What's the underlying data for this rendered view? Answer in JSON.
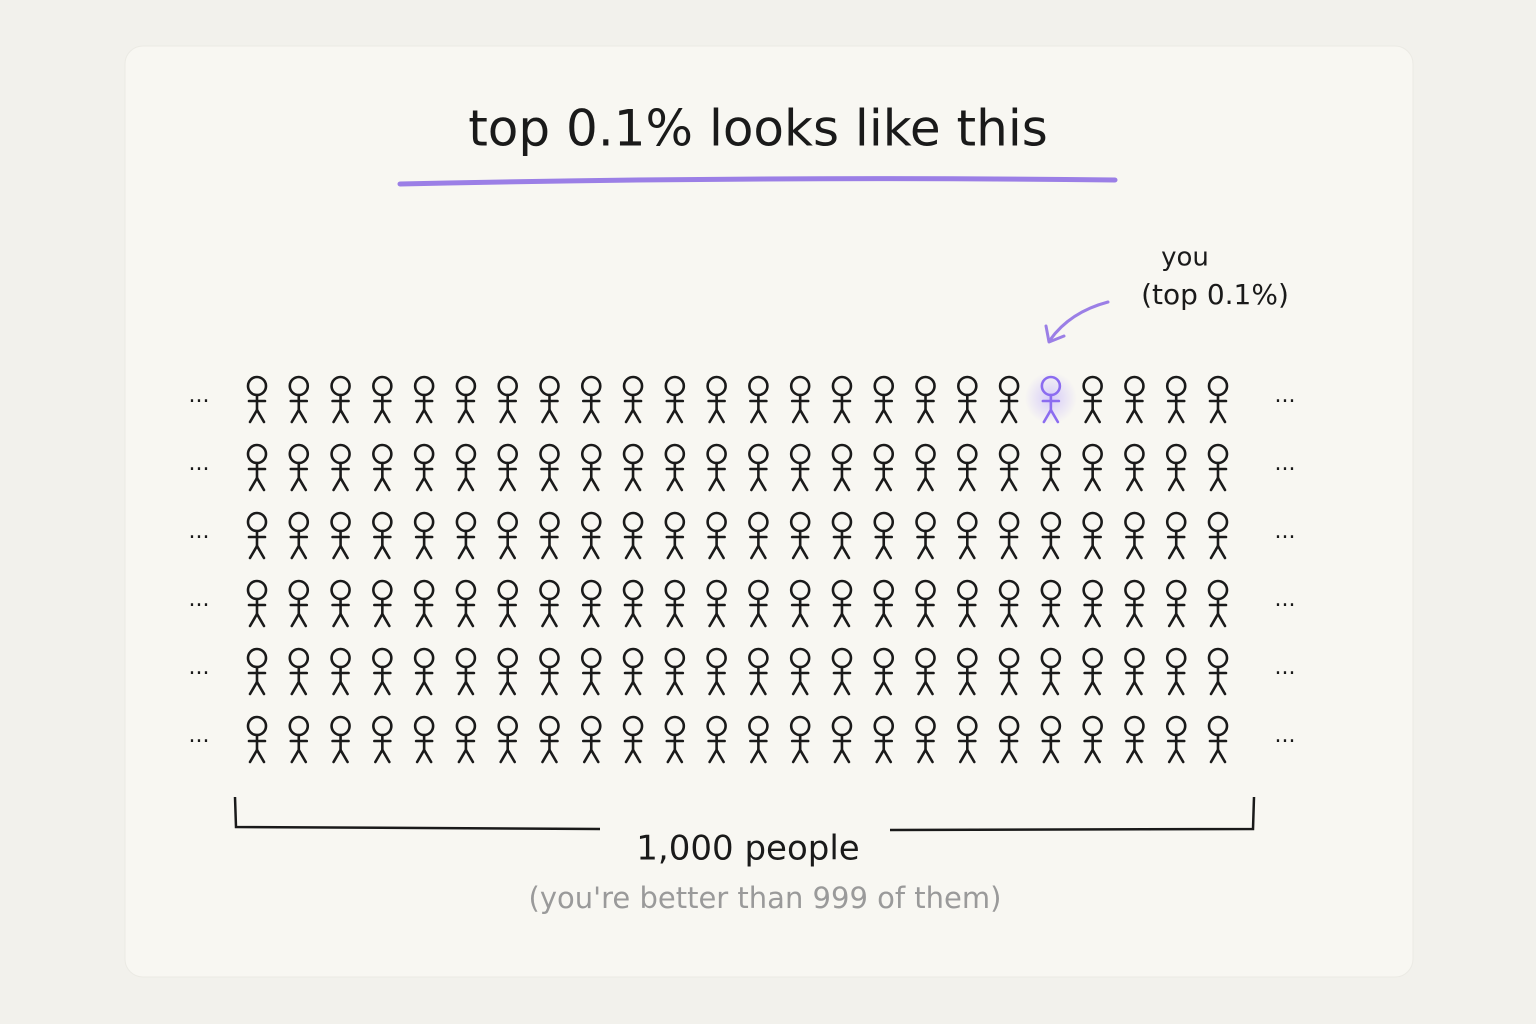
{
  "title": "top 0.1% looks like this",
  "callout": {
    "line1": "you",
    "line2": "(top 0.1%)"
  },
  "ellipsis": "...",
  "crowd": {
    "rows": 6,
    "columns": 24,
    "highlight": {
      "row": 0,
      "column": 19
    },
    "color": "#1a1a1a",
    "highlight_color": "#8b6cf0"
  },
  "bracket": {
    "label": "1,000 people",
    "sublabel": "(you're better than 999 of them)"
  }
}
